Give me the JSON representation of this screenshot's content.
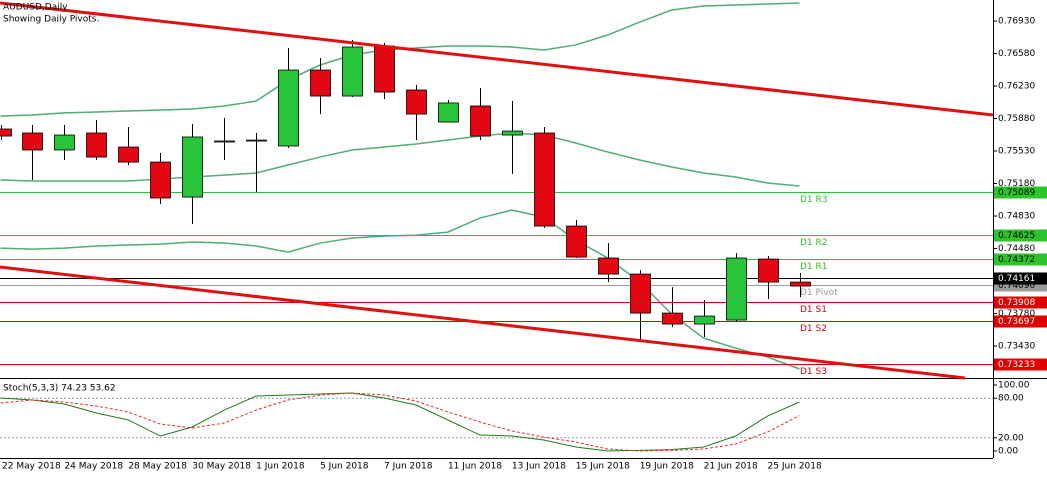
{
  "chart_data": [
    {
      "type": "candlestick",
      "title": "AUDUSD,Daily",
      "subtitle": "Showing Daily Pivots.",
      "categories": [
        "22 May 2018",
        null,
        "24 May 2018",
        null,
        "28 May 2018",
        null,
        "30 May 2018",
        null,
        "1 Jun 2018",
        null,
        "5 Jun 2018",
        null,
        "7 Jun 2018",
        null,
        "11 Jun 2018",
        null,
        "13 Jun 2018",
        null,
        "15 Jun 2018",
        null,
        "19 Jun 2018",
        null,
        "21 Jun 2018",
        null,
        "25 Jun 2018",
        null
      ],
      "open": [
        0.75767,
        0.75724,
        0.75541,
        0.75724,
        0.75573,
        0.75411,
        0.75034,
        0.75627,
        0.75648,
        0.75584,
        0.76402,
        0.76122,
        0.76661,
        0.76187,
        0.75842,
        0.76015,
        0.75702,
        0.75724,
        0.74722,
        0.74378,
        0.74205,
        0.73785,
        0.73667,
        0.7371,
        0.74367,
        0.74119
      ],
      "high": [
        0.7581,
        0.7581,
        0.7581,
        0.75864,
        0.75788,
        0.75508,
        0.75821,
        0.75885,
        0.75724,
        0.76639,
        0.76532,
        0.76725,
        0.76693,
        0.76241,
        0.76079,
        0.76208,
        0.76068,
        0.75788,
        0.74787,
        0.74539,
        0.74248,
        0.74065,
        0.73925,
        0.74431,
        0.74399,
        0.74216
      ],
      "low": [
        0.75648,
        0.75218,
        0.75433,
        0.75433,
        0.75379,
        0.74959,
        0.74744,
        0.75433,
        0.75088,
        0.75562,
        0.75928,
        0.76111,
        0.7609,
        0.75648,
        0.75842,
        0.75648,
        0.75282,
        0.74701,
        0.74378,
        0.74119,
        0.73494,
        0.73634,
        0.73527,
        0.73688,
        0.73936,
        0.73957
      ],
      "close": [
        0.75691,
        0.75541,
        0.75702,
        0.75465,
        0.75411,
        0.75024,
        0.75681,
        0.75638,
        0.75648,
        0.76402,
        0.76122,
        0.7665,
        0.76165,
        0.75928,
        0.76047,
        0.75691,
        0.75745,
        0.74722,
        0.74388,
        0.74205,
        0.73785,
        0.73667,
        0.73753,
        0.74378,
        0.74119,
        0.74076
      ],
      "up_color": "#27c43c",
      "down_color": "#e30613",
      "bands": {
        "color": "#4fae78",
        "upper": [
          0.75907,
          0.75918,
          0.7594,
          0.7595,
          0.75961,
          0.75971,
          0.75982,
          0.76015,
          0.76068,
          0.76295,
          0.76456,
          0.76564,
          0.76618,
          0.76639,
          0.76661,
          0.76661,
          0.7665,
          0.76618,
          0.76672,
          0.76779,
          0.76919,
          0.77048,
          0.77091,
          0.77102,
          0.77113,
          0.77124
        ],
        "middle": [
          0.75218,
          0.75207,
          0.75207,
          0.75207,
          0.75207,
          0.75228,
          0.7525,
          0.75271,
          0.75293,
          0.75379,
          0.75465,
          0.75541,
          0.75573,
          0.75605,
          0.75648,
          0.75691,
          0.75724,
          0.75702,
          0.75616,
          0.75519,
          0.75433,
          0.75358,
          0.75293,
          0.7525,
          0.75185,
          0.75153
        ],
        "lower": [
          0.74485,
          0.74474,
          0.74485,
          0.74507,
          0.74518,
          0.74528,
          0.7455,
          0.74539,
          0.74507,
          0.74442,
          0.74539,
          0.74593,
          0.74614,
          0.74625,
          0.74657,
          0.74808,
          0.74894,
          0.74819,
          0.74571,
          0.74378,
          0.74119,
          0.73774,
          0.73516,
          0.73408,
          0.73312,
          0.73183
        ]
      },
      "levels": [
        {
          "label": "D1 R3",
          "value": 0.75089,
          "color": "#2bc42b"
        },
        {
          "label": "D1 R2",
          "value": 0.74625,
          "color": "#2bc42b"
        },
        {
          "label": "D1 R1",
          "value": 0.74372,
          "color": "#2bc42b"
        },
        {
          "label": "D1 Pivot",
          "value": 0.7409,
          "value_label": "0.74090",
          "color": "#9a9a9a"
        },
        {
          "label": "D1 S1",
          "value": 0.73908,
          "color": "#e00000"
        },
        {
          "label": "D1 S2",
          "value": 0.73697,
          "color": "#e00000"
        },
        {
          "label": "D1 S3",
          "value": 0.73233,
          "color": "#e00000"
        }
      ],
      "last_price": 0.74161,
      "ylim": [
        0.73086,
        0.77156
      ],
      "yticks": [
        {
          "value": 0.7693,
          "label": "0.76930"
        },
        {
          "value": 0.7658,
          "label": "0.76580"
        },
        {
          "value": 0.7623,
          "label": "0.76230"
        },
        {
          "value": 0.7588,
          "label": "0.75880"
        },
        {
          "value": 0.7553,
          "label": "0.75530"
        },
        {
          "value": 0.7518,
          "label": "0.75180"
        },
        {
          "value": 0.7483,
          "label": "0.74830"
        },
        {
          "value": 0.7448,
          "label": "0.74480"
        },
        {
          "value": 0.7378,
          "label": "0.73780"
        },
        {
          "value": 0.7343,
          "label": "0.73430"
        }
      ]
    },
    {
      "type": "line",
      "title": "Stoch(5,3,3) 74.23 53.62",
      "series": [
        {
          "color": "#1f7a1f",
          "style": "solid",
          "values": [
            80.3,
            77.3,
            71.2,
            57.6,
            47,
            22.7,
            36.4,
            62.1,
            83.3,
            84.8,
            86.4,
            87.9,
            80.3,
            69.7,
            47,
            24.2,
            22.7,
            16.7,
            6.1,
            0,
            1,
            2,
            6,
            22.7,
            53,
            74.23
          ]
        },
        {
          "color": "#e03030",
          "style": "dashed",
          "values": [
            72.7,
            77.3,
            74.2,
            68.2,
            59.1,
            40.9,
            34.8,
            42.4,
            62.1,
            77.3,
            84.8,
            87.9,
            84.8,
            75.8,
            59.1,
            43.9,
            30.3,
            21.2,
            13.6,
            3,
            0,
            1,
            3,
            10.6,
            28.8,
            53.62
          ]
        }
      ],
      "ylim": [
        -10.6,
        109.1
      ],
      "yticks": [
        {
          "value": 100,
          "label": "100.00"
        },
        {
          "value": 80,
          "label": "80.00"
        },
        {
          "value": 20,
          "label": "20.00"
        },
        {
          "value": 0,
          "label": "0.00"
        }
      ]
    }
  ]
}
